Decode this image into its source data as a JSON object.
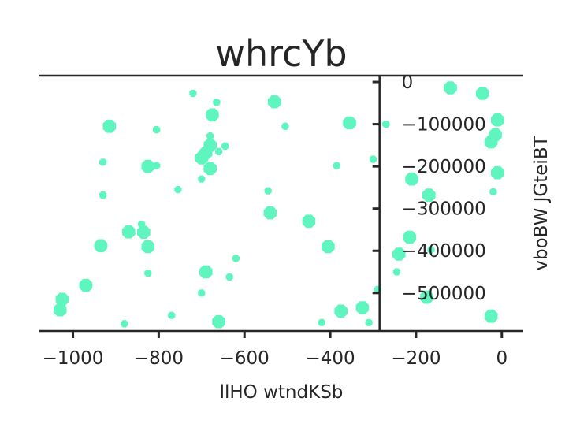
{
  "chart_data": {
    "type": "scatter",
    "title": "whrcYb",
    "xlabel": "llHO wtndKSb",
    "ylabel": "vboBW JGteiBT",
    "xlim": [
      -1080,
      50
    ],
    "ylim": [
      -590000,
      15000
    ],
    "x_ticks": [
      -1000,
      -800,
      -600,
      -400,
      -200,
      0
    ],
    "x_tick_labels": [
      "−1000",
      "−800",
      "−600",
      "−400",
      "−200",
      "0"
    ],
    "y_ticks": [
      0,
      -100000,
      -200000,
      -300000,
      -400000,
      -500000
    ],
    "y_tick_labels": [
      "0",
      "−100000",
      "−200000",
      "−300000",
      "−400000",
      "−500000"
    ],
    "x_spine_position": 0,
    "y_spine_position": -285,
    "marker_color": "#5ef5bf",
    "text_color": "#262626",
    "points": [
      {
        "x": -720,
        "y": -27000,
        "size": "small"
      },
      {
        "x": -665,
        "y": -48000,
        "size": "small"
      },
      {
        "x": -530,
        "y": -47000,
        "size": "large"
      },
      {
        "x": -675,
        "y": -78000,
        "size": "large"
      },
      {
        "x": -915,
        "y": -105000,
        "size": "large"
      },
      {
        "x": -805,
        "y": -113000,
        "size": "small"
      },
      {
        "x": -505,
        "y": -105000,
        "size": "small"
      },
      {
        "x": -355,
        "y": -97000,
        "size": "large"
      },
      {
        "x": -270,
        "y": -100000,
        "size": "small"
      },
      {
        "x": -120,
        "y": -14000,
        "size": "large"
      },
      {
        "x": -45,
        "y": -27000,
        "size": "large"
      },
      {
        "x": -10,
        "y": -90000,
        "size": "large"
      },
      {
        "x": -15,
        "y": -125000,
        "size": "large"
      },
      {
        "x": -25,
        "y": -142000,
        "size": "large"
      },
      {
        "x": -10,
        "y": -215000,
        "size": "large"
      },
      {
        "x": -20,
        "y": -260000,
        "size": "small"
      },
      {
        "x": -680,
        "y": -128000,
        "size": "small"
      },
      {
        "x": -680,
        "y": -150000,
        "size": "large"
      },
      {
        "x": -690,
        "y": -168000,
        "size": "large"
      },
      {
        "x": -645,
        "y": -152000,
        "size": "small"
      },
      {
        "x": -660,
        "y": -165000,
        "size": "small"
      },
      {
        "x": -700,
        "y": -180000,
        "size": "large"
      },
      {
        "x": -680,
        "y": -205000,
        "size": "large"
      },
      {
        "x": -700,
        "y": -230000,
        "size": "small"
      },
      {
        "x": -755,
        "y": -255000,
        "size": "small"
      },
      {
        "x": -930,
        "y": -190000,
        "size": "small"
      },
      {
        "x": -825,
        "y": -200000,
        "size": "large"
      },
      {
        "x": -805,
        "y": -198000,
        "size": "small"
      },
      {
        "x": -930,
        "y": -268000,
        "size": "small"
      },
      {
        "x": -545,
        "y": -258000,
        "size": "small"
      },
      {
        "x": -385,
        "y": -198000,
        "size": "small"
      },
      {
        "x": -300,
        "y": -183000,
        "size": "small"
      },
      {
        "x": -210,
        "y": -230000,
        "size": "large"
      },
      {
        "x": -170,
        "y": -268000,
        "size": "large"
      },
      {
        "x": -540,
        "y": -310000,
        "size": "large"
      },
      {
        "x": -450,
        "y": -330000,
        "size": "large"
      },
      {
        "x": -840,
        "y": -337000,
        "size": "small"
      },
      {
        "x": -870,
        "y": -355000,
        "size": "large"
      },
      {
        "x": -835,
        "y": -356000,
        "size": "large"
      },
      {
        "x": -825,
        "y": -390000,
        "size": "large"
      },
      {
        "x": -935,
        "y": -388000,
        "size": "large"
      },
      {
        "x": -405,
        "y": -390000,
        "size": "large"
      },
      {
        "x": -215,
        "y": -368000,
        "size": "large"
      },
      {
        "x": -165,
        "y": -398000,
        "size": "small"
      },
      {
        "x": -240,
        "y": -408000,
        "size": "large"
      },
      {
        "x": -620,
        "y": -418000,
        "size": "small"
      },
      {
        "x": -690,
        "y": -450000,
        "size": "large"
      },
      {
        "x": -635,
        "y": -462000,
        "size": "small"
      },
      {
        "x": -825,
        "y": -453000,
        "size": "small"
      },
      {
        "x": -245,
        "y": -450000,
        "size": "small"
      },
      {
        "x": -970,
        "y": -482000,
        "size": "large"
      },
      {
        "x": -1025,
        "y": -515000,
        "size": "large"
      },
      {
        "x": -1030,
        "y": -540000,
        "size": "large"
      },
      {
        "x": -700,
        "y": -500000,
        "size": "small"
      },
      {
        "x": -290,
        "y": -492000,
        "size": "small"
      },
      {
        "x": -175,
        "y": -510000,
        "size": "large"
      },
      {
        "x": -325,
        "y": -535000,
        "size": "large"
      },
      {
        "x": -375,
        "y": -543000,
        "size": "large"
      },
      {
        "x": -310,
        "y": -570000,
        "size": "small"
      },
      {
        "x": -420,
        "y": -570000,
        "size": "small"
      },
      {
        "x": -660,
        "y": -568000,
        "size": "large"
      },
      {
        "x": -770,
        "y": -553000,
        "size": "small"
      },
      {
        "x": -880,
        "y": -573000,
        "size": "small"
      },
      {
        "x": -25,
        "y": -555000,
        "size": "large"
      }
    ]
  }
}
